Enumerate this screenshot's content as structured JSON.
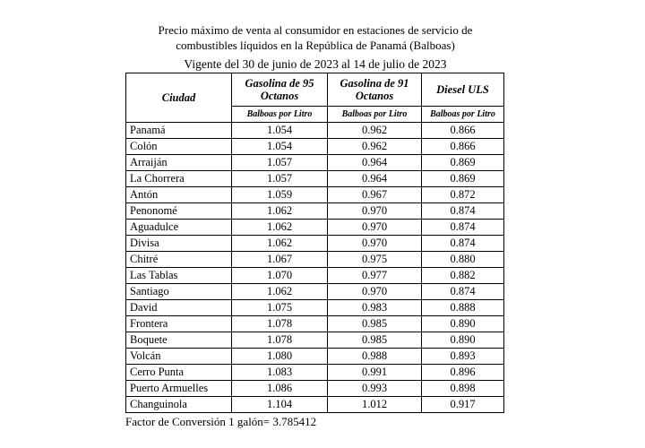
{
  "header": {
    "title_lines": [
      "Precio máximo de venta al consumidor en estaciones de servicio de",
      "combustibles líquidos en la República de Panamá (Balboas)"
    ],
    "validity": "Vigente del 30 de junio de 2023 al 14 de julio de 2023"
  },
  "table": {
    "columns": [
      "Ciudad",
      "Gasolina de 95 Octanos",
      "Gasolina de 91 Octanos",
      "Diesel ULS"
    ],
    "units": [
      "Balboas por Litro",
      "Balboas por Litro",
      "Balboas por Litro"
    ],
    "rows": [
      [
        "Panamá",
        "1.054",
        "0.962",
        "0.866"
      ],
      [
        "Colón",
        "1.054",
        "0.962",
        "0.866"
      ],
      [
        "Arraiján",
        "1.057",
        "0.964",
        "0.869"
      ],
      [
        "La Chorrera",
        "1.057",
        "0.964",
        "0.869"
      ],
      [
        "Antón",
        "1.059",
        "0.967",
        "0.872"
      ],
      [
        "Penonomé",
        "1.062",
        "0.970",
        "0.874"
      ],
      [
        "Aguadulce",
        "1.062",
        "0.970",
        "0.874"
      ],
      [
        "Divisa",
        "1.062",
        "0.970",
        "0.874"
      ],
      [
        "Chitré",
        "1.067",
        "0.975",
        "0.880"
      ],
      [
        "Las Tablas",
        "1.070",
        "0.977",
        "0.882"
      ],
      [
        "Santiago",
        "1.062",
        "0.970",
        "0.874"
      ],
      [
        "David",
        "1.075",
        "0.983",
        "0.888"
      ],
      [
        "Frontera",
        "1.078",
        "0.985",
        "0.890"
      ],
      [
        "Boquete",
        "1.078",
        "0.985",
        "0.890"
      ],
      [
        "Volcán",
        "1.080",
        "0.988",
        "0.893"
      ],
      [
        "Cerro Punta",
        "1.083",
        "0.991",
        "0.896"
      ],
      [
        "Puerto Armuelles",
        "1.086",
        "0.993",
        "0.898"
      ],
      [
        "Changuinola",
        "1.104",
        "1.012",
        "0.917"
      ]
    ]
  },
  "footer": "Factor de Conversión  1 galón= 3.785412"
}
